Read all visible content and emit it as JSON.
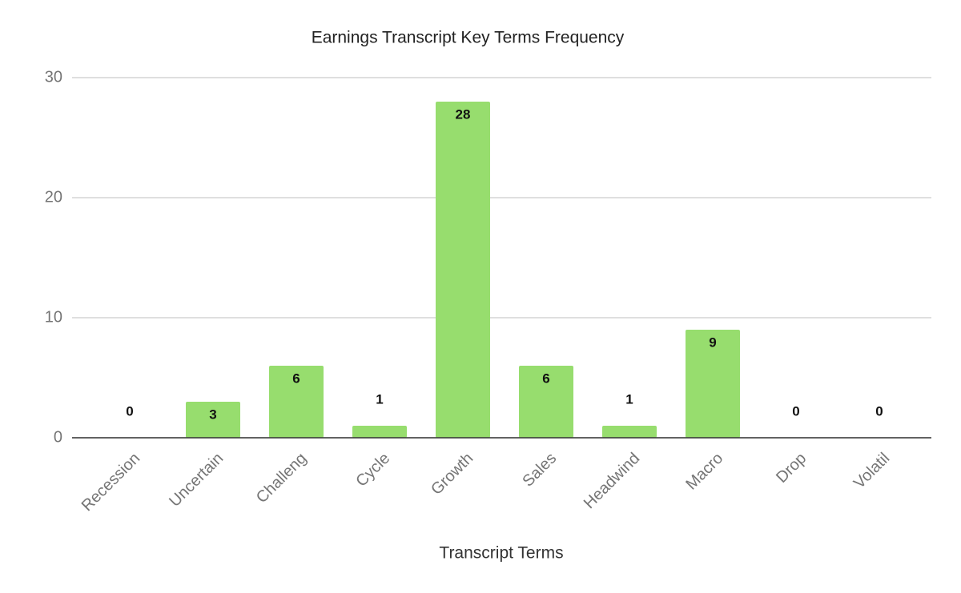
{
  "chart_data": {
    "type": "bar",
    "title": "Earnings Transcript Key Terms Frequency",
    "x_label": "Transcript Terms",
    "categories": [
      "Recession",
      "Uncertain",
      "Challeng",
      "Cycle",
      "Growth",
      "Sales",
      "Headwind",
      "Macro",
      "Drop",
      "Volatil"
    ],
    "values": [
      0,
      3,
      6,
      1,
      28,
      6,
      1,
      9,
      0,
      0
    ],
    "color": "#97dd6e",
    "ylim": [
      0,
      30
    ],
    "yticks": [
      0,
      10,
      20,
      30
    ],
    "grid": true
  }
}
